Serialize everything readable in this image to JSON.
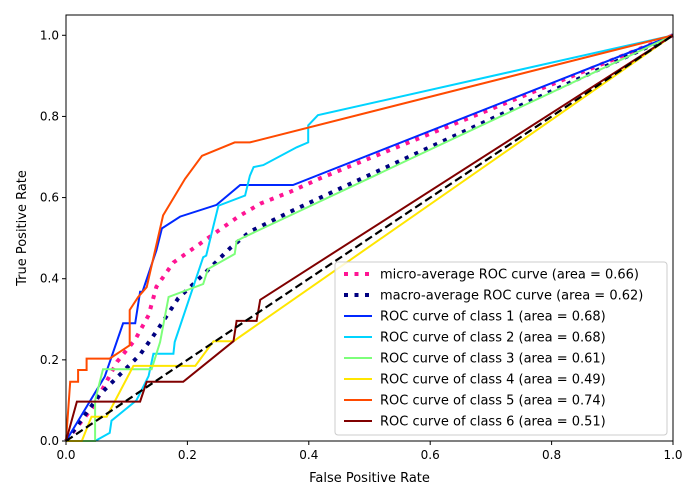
{
  "chart_data": {
    "type": "line",
    "title": "",
    "xlabel": "False Positive Rate",
    "ylabel": "True Positive Rate",
    "xlim": [
      0,
      1
    ],
    "ylim": [
      0,
      1.05
    ],
    "xticks": [
      "0.0",
      "0.2",
      "0.4",
      "0.6",
      "0.8",
      "1.0"
    ],
    "yticks": [
      "0.0",
      "0.2",
      "0.4",
      "0.6",
      "0.8",
      "1.0"
    ],
    "grid": false,
    "legend_position": "lower-right",
    "series": [
      {
        "name": "micro-average ROC curve (area = 0.66)",
        "color": "#ff1493",
        "style": "dotted",
        "x": [
          0,
          0.045,
          0.084,
          0.114,
          0.136,
          0.149,
          0.177,
          0.21,
          0.245,
          0.284,
          0.32,
          0.369,
          0.418,
          1
        ],
        "y": [
          0,
          0.085,
          0.195,
          0.25,
          0.31,
          0.38,
          0.44,
          0.475,
          0.512,
          0.553,
          0.585,
          0.614,
          0.647,
          1
        ]
      },
      {
        "name": "macro-average ROC curve (area = 0.62)",
        "color": "#000080",
        "style": "dotted",
        "x": [
          0,
          0.056,
          0.089,
          0.122,
          0.149,
          0.185,
          0.226,
          0.27,
          0.303,
          0.369,
          0.451,
          1
        ],
        "y": [
          0,
          0.115,
          0.164,
          0.213,
          0.27,
          0.352,
          0.41,
          0.475,
          0.516,
          0.565,
          0.622,
          1
        ]
      },
      {
        "name": "ROC curve of class 1 (area = 0.68)",
        "color": "#0028ff",
        "style": "solid",
        "x": [
          0,
          0.064,
          0.094,
          0.114,
          0.122,
          0.126,
          0.149,
          0.158,
          0.188,
          0.248,
          0.287,
          0.374,
          1
        ],
        "y": [
          0,
          0.159,
          0.29,
          0.29,
          0.368,
          0.368,
          0.47,
          0.524,
          0.553,
          0.582,
          0.631,
          0.631,
          1
        ]
      },
      {
        "name": "ROC curve of class 2 (area = 0.68)",
        "color": "#00d4ff",
        "style": "solid",
        "x": [
          0,
          0.048,
          0.072,
          0.075,
          0.116,
          0.136,
          0.144,
          0.177,
          0.179,
          0.226,
          0.231,
          0.243,
          0.251,
          0.295,
          0.303,
          0.309,
          0.325,
          0.38,
          0.399,
          0.399,
          0.415,
          1
        ],
        "y": [
          0,
          0,
          0.02,
          0.05,
          0.1,
          0.16,
          0.215,
          0.215,
          0.244,
          0.453,
          0.457,
          0.531,
          0.58,
          0.605,
          0.654,
          0.675,
          0.68,
          0.724,
          0.736,
          0.778,
          0.803,
          1
        ]
      },
      {
        "name": "ROC curve of class 3 (area = 0.61)",
        "color": "#7dff7a",
        "style": "solid",
        "x": [
          0,
          0.048,
          0.048,
          0.061,
          0.141,
          0.155,
          0.169,
          0.226,
          0.234,
          0.278,
          0.281,
          0.29,
          1
        ],
        "y": [
          0,
          0,
          0.1,
          0.177,
          0.177,
          0.244,
          0.355,
          0.387,
          0.424,
          0.461,
          0.493,
          0.5,
          1
        ]
      },
      {
        "name": "ROC curve of class 4 (area = 0.49)",
        "color": "#ffe600",
        "style": "solid",
        "x": [
          0,
          0.026,
          0.042,
          0.067,
          0.111,
          0.213,
          0.243,
          0.276,
          1
        ],
        "y": [
          0,
          0,
          0.06,
          0.06,
          0.185,
          0.185,
          0.246,
          0.246,
          1
        ]
      },
      {
        "name": "ROC curve of class 5 (area = 0.74)",
        "color": "#ff4a00",
        "style": "solid",
        "x": [
          0,
          0.007,
          0.02,
          0.02,
          0.034,
          0.034,
          0.072,
          0.105,
          0.105,
          0.119,
          0.133,
          0.16,
          0.196,
          0.224,
          0.278,
          0.303,
          1
        ],
        "y": [
          0,
          0.146,
          0.146,
          0.175,
          0.175,
          0.203,
          0.203,
          0.236,
          0.323,
          0.355,
          0.379,
          0.556,
          0.646,
          0.703,
          0.736,
          0.736,
          1
        ]
      },
      {
        "name": "ROC curve of class 6 (area = 0.51)",
        "color": "#800000",
        "style": "solid",
        "x": [
          0,
          0.018,
          0.122,
          0.133,
          0.193,
          0.276,
          0.281,
          0.314,
          0.32,
          1
        ],
        "y": [
          0,
          0.097,
          0.097,
          0.146,
          0.146,
          0.246,
          0.296,
          0.296,
          0.348,
          1
        ]
      },
      {
        "color": "#000000",
        "style": "dashed",
        "x": [
          0,
          1
        ],
        "y": [
          0,
          1
        ]
      }
    ]
  }
}
